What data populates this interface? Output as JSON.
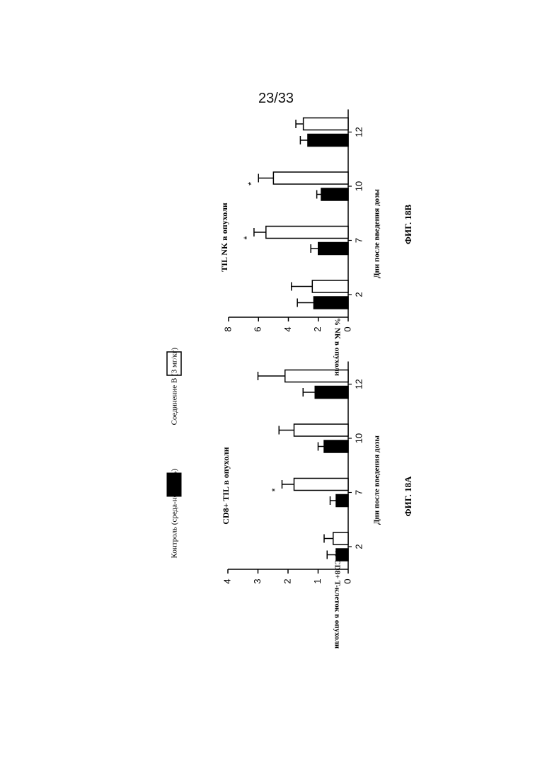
{
  "page": {
    "number": "23/33"
  },
  "legend": {
    "control_label": "Контроль (среда-носитель)",
    "compound_label": "Соединение B (3 мг/кг)"
  },
  "chart_data": [
    {
      "id": "fig18a",
      "type": "bar",
      "figure_label": "ФИГ. 18A",
      "title": "CD8+ TIL в опухоли",
      "xlabel": "Дни после введения дозы",
      "ylabel": "% CD8+ T-клеток в опухоли",
      "categories": [
        "2",
        "7",
        "10",
        "12"
      ],
      "ylim": [
        0,
        4
      ],
      "yticks": [
        "0",
        "1",
        "2",
        "3",
        "4"
      ],
      "series": [
        {
          "name": "Контроль (среда-носитель)",
          "fill": "#000000",
          "values": [
            0.4,
            0.4,
            0.8,
            1.1
          ],
          "errors": [
            0.3,
            0.2,
            0.2,
            0.4
          ]
        },
        {
          "name": "Соединение B (3 мг/кг)",
          "fill": "#ffffff",
          "values": [
            0.5,
            1.8,
            1.8,
            2.1
          ],
          "errors": [
            0.3,
            0.4,
            0.5,
            0.9
          ]
        }
      ],
      "significance": [
        [
          "",
          ""
        ],
        [
          "",
          "*"
        ],
        [
          "",
          ""
        ],
        [
          "",
          ""
        ]
      ]
    },
    {
      "id": "fig18b",
      "type": "bar",
      "figure_label": "ФИГ. 18B",
      "title": "TIL NK в опухоли",
      "xlabel": "Дни после введения дозы",
      "ylabel": "% NK в опухоли",
      "categories": [
        "2",
        "7",
        "10",
        "12"
      ],
      "ylim": [
        0,
        8
      ],
      "yticks": [
        "0",
        "2",
        "4",
        "6",
        "8"
      ],
      "series": [
        {
          "name": "Контроль (среда-носитель)",
          "fill": "#000000",
          "values": [
            2.3,
            2.0,
            1.8,
            2.7
          ],
          "errors": [
            1.1,
            0.5,
            0.3,
            0.5
          ]
        },
        {
          "name": "Соединение B (3 мг/кг)",
          "fill": "#ffffff",
          "values": [
            2.4,
            5.5,
            5.0,
            3.0
          ],
          "errors": [
            1.4,
            0.8,
            1.0,
            0.5
          ]
        }
      ],
      "significance": [
        [
          "",
          ""
        ],
        [
          "",
          "*"
        ],
        [
          "",
          "*"
        ],
        [
          "",
          ""
        ]
      ]
    }
  ]
}
